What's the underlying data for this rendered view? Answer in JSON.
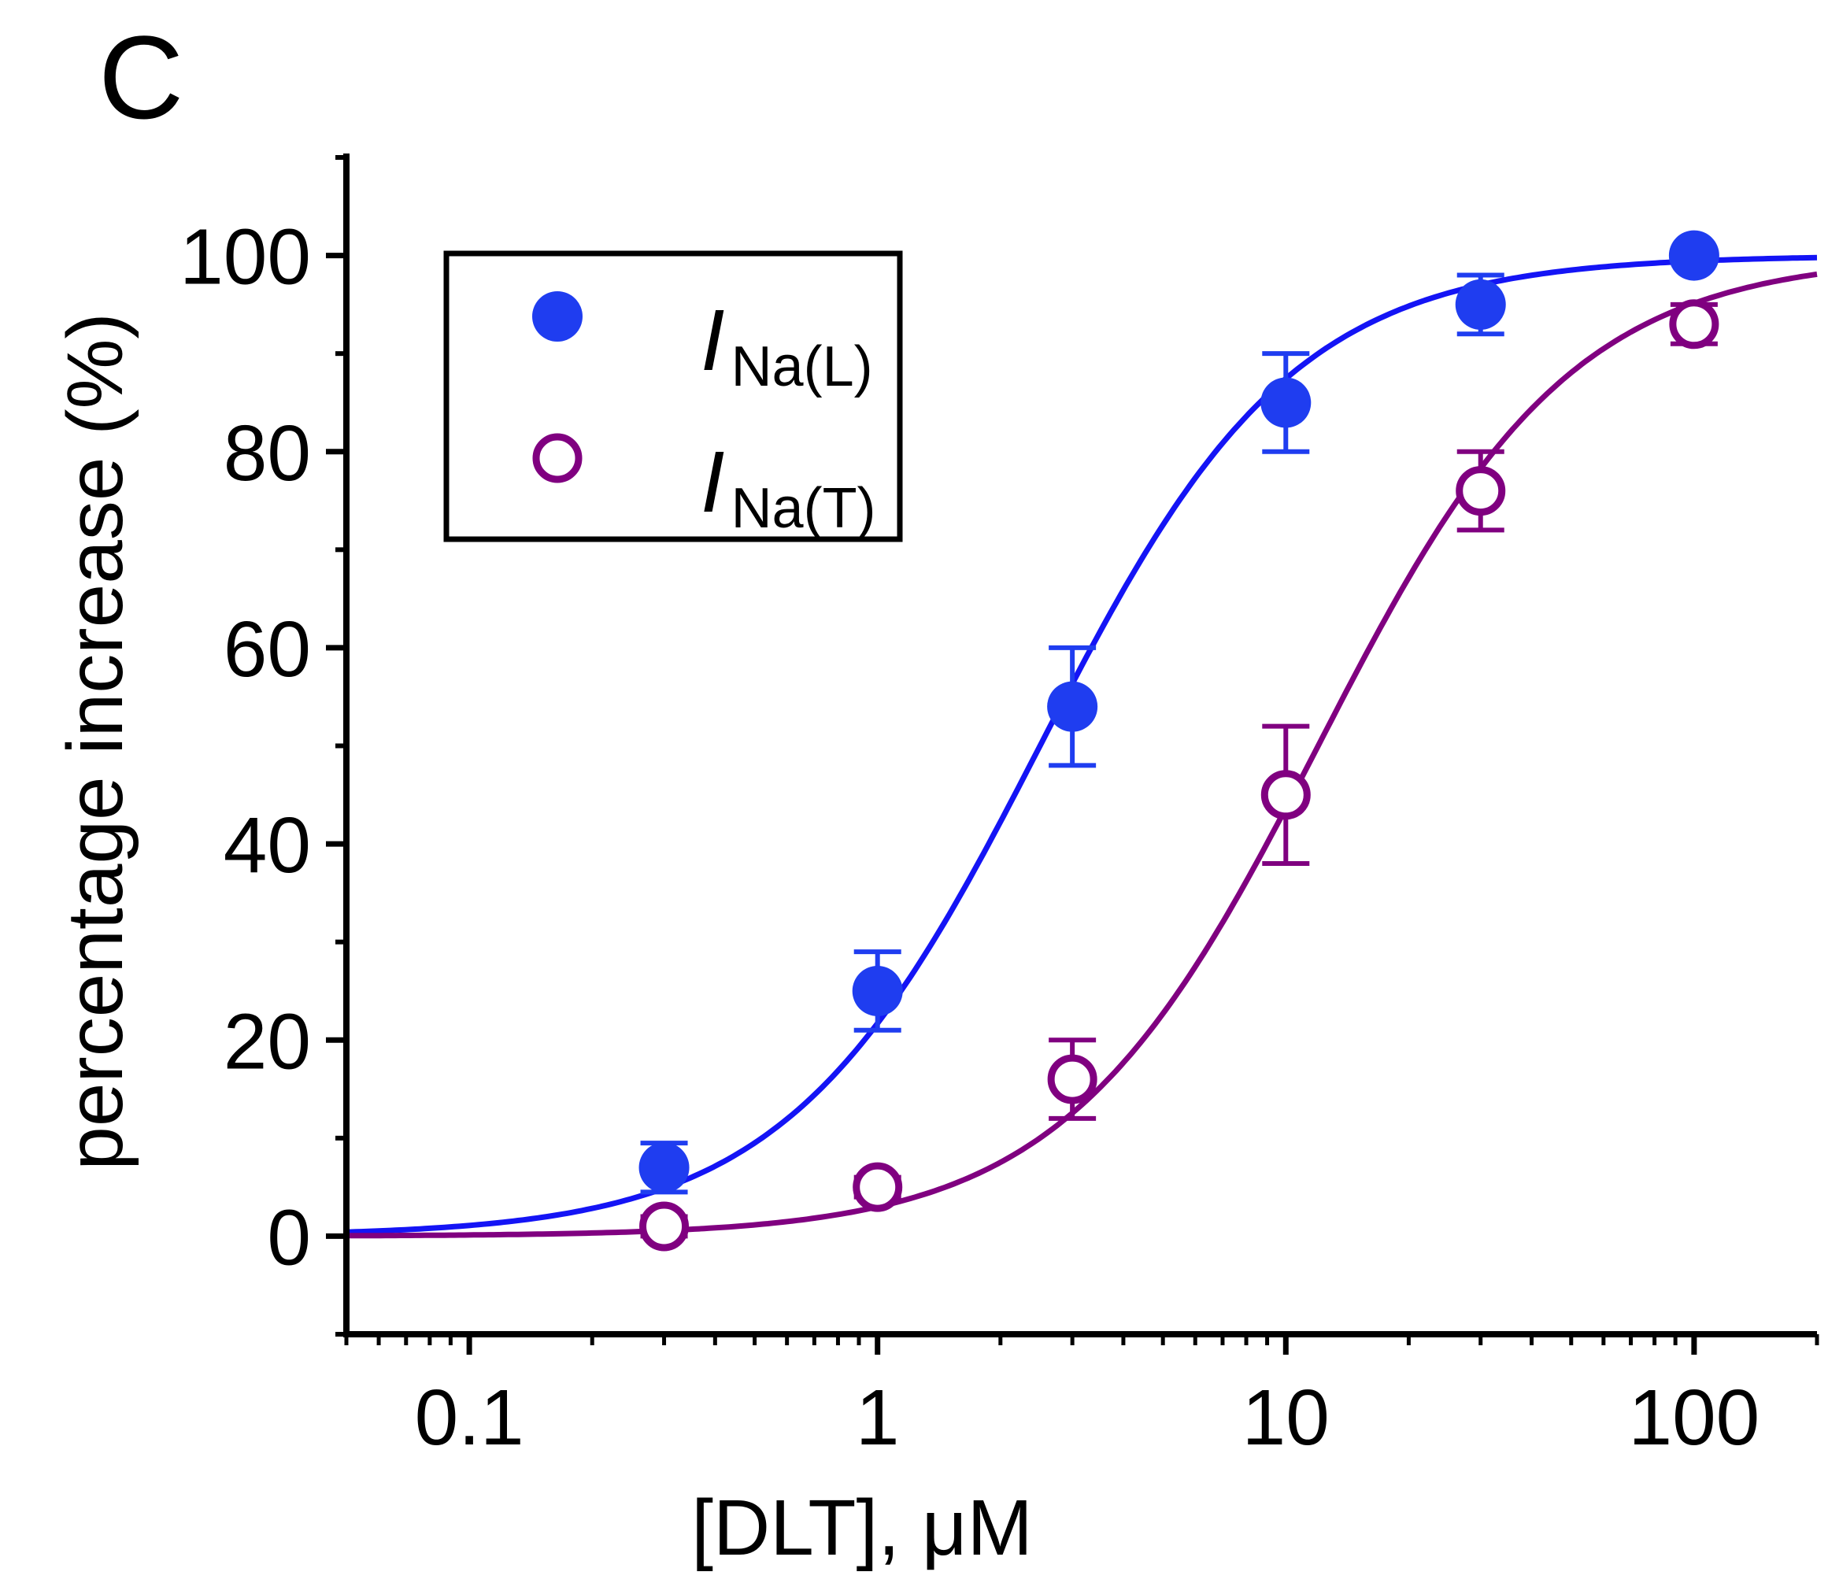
{
  "panel_label": "C",
  "chart_data": {
    "type": "scatter",
    "title": "",
    "xlabel": "[DLT], μM",
    "ylabel": "percentage increase (%)",
    "xscale": "log",
    "xlim": [
      0.05,
      200
    ],
    "ylim": [
      -10,
      110
    ],
    "x_ticks": [
      0.1,
      1,
      10,
      100
    ],
    "x_tick_labels": [
      "0.1",
      "1",
      "10",
      "100"
    ],
    "y_ticks": [
      0,
      20,
      40,
      60,
      80,
      100
    ],
    "y_tick_labels": [
      "0",
      "20",
      "40",
      "60",
      "80",
      "100"
    ],
    "legend_position": "top-left",
    "series": [
      {
        "name": "I_Na(L)",
        "legend_main": "I",
        "legend_sub": "Na(L)",
        "marker": "filled-circle",
        "color": "#1f3df0",
        "line_color": "#1414f5",
        "x": [
          0.3,
          1,
          3,
          10,
          30,
          100
        ],
        "y": [
          7,
          25,
          54,
          85,
          95,
          100
        ],
        "err": [
          2.5,
          4,
          6,
          5,
          3,
          0
        ],
        "fit": {
          "ec50": 2.5,
          "hill": 1.4
        }
      },
      {
        "name": "I_Na(T)",
        "legend_main": "I",
        "legend_sub": "Na(T)",
        "marker": "open-circle",
        "color": "#800080",
        "line_color": "#800080",
        "x": [
          0.3,
          1,
          3,
          10,
          30,
          100
        ],
        "y": [
          1,
          5,
          16,
          45,
          76,
          93
        ],
        "err": [
          1,
          1,
          4,
          7,
          4,
          2
        ],
        "fit": {
          "ec50": 12,
          "hill": 1.4
        }
      }
    ]
  }
}
